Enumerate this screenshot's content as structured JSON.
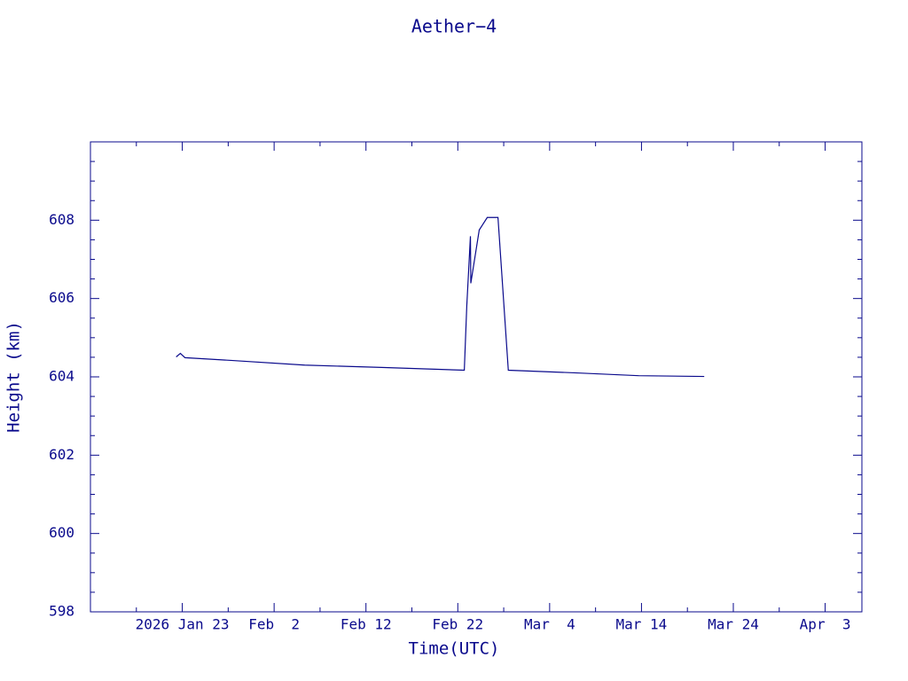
{
  "chart_data": {
    "type": "line",
    "title": "Aether−4",
    "x_label": "Time(UTC)",
    "y_label": "Height (km)",
    "x": [
      "2026-01-22T08:00Z",
      "2026-01-22T19:00Z",
      "2026-01-23T07:00Z",
      "2026-01-28T07:00Z",
      "2026-02-05T08:00Z",
      "2026-02-13T17:00Z",
      "2026-02-22T17:00Z",
      "2026-02-22T23:30Z",
      "2026-02-23T09:00Z",
      "2026-02-23T10:00Z",
      "2026-02-24T08:00Z",
      "2026-02-25T05:00Z",
      "2026-02-26T09:00Z",
      "2026-02-27T12:00Z",
      "2026-03-06T23:00Z",
      "2026-03-13T17:00Z",
      "2026-03-20T20:00Z"
    ],
    "series": [
      {
        "color": "#0a0a8c",
        "values": [
          604.51,
          604.6,
          604.49,
          604.42,
          604.3,
          604.24,
          604.17,
          605.82,
          607.59,
          606.39,
          607.75,
          608.07,
          608.07,
          604.17,
          604.1,
          604.03,
          604.01
        ]
      }
    ],
    "xlim": [
      "2026-01-13",
      "2026-04-07"
    ],
    "xticks": [
      {
        "value": "2026-01-23",
        "label": "2026 Jan 23"
      },
      {
        "value": "2026-02-02",
        "label": "Feb  2"
      },
      {
        "value": "2026-02-12",
        "label": "Feb 12"
      },
      {
        "value": "2026-02-22",
        "label": "Feb 22"
      },
      {
        "value": "2026-03-04",
        "label": "Mar  4"
      },
      {
        "value": "2026-03-14",
        "label": "Mar 14"
      },
      {
        "value": "2026-03-24",
        "label": "Mar 24"
      },
      {
        "value": "2026-04-03",
        "label": "Apr  3"
      }
    ],
    "ylim": [
      598,
      610
    ],
    "yticks": [
      598,
      600,
      602,
      604,
      606,
      608
    ],
    "axis_color": "#0a0a8c"
  }
}
